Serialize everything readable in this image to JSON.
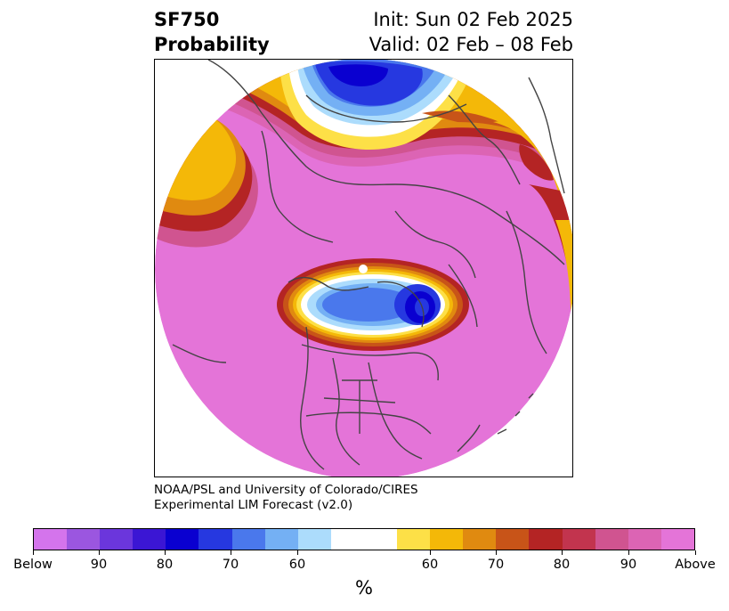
{
  "title": {
    "variable": "SF750",
    "kind": "Probability",
    "init": "Init: Sun 02 Feb 2025",
    "valid": "Valid: 02 Feb – 08 Feb"
  },
  "credit": {
    "line1": "NOAA/PSL and University of Colorado/CIRES",
    "line2": "Experimental LIM Forecast (v2.0)"
  },
  "colorbar": {
    "unit_label": "%",
    "tick_labels": [
      "Below",
      "90",
      "80",
      "70",
      "60",
      "60",
      "70",
      "80",
      "90",
      "Above"
    ],
    "segments": [
      {
        "category": "Below",
        "color": "#d474ec"
      },
      {
        "category": "below 90-100",
        "color": "#9b56e0"
      },
      {
        "category": "below 85-90",
        "color": "#6b36dc"
      },
      {
        "category": "below 80-85",
        "color": "#3b16d4"
      },
      {
        "category": "below 75-80",
        "color": "#0a00d0"
      },
      {
        "category": "below 70-75",
        "color": "#2638e0"
      },
      {
        "category": "below 65-70",
        "color": "#4a78ec"
      },
      {
        "category": "below 60-65",
        "color": "#74b0f4"
      },
      {
        "category": "below 55-60",
        "color": "#acdcfc"
      },
      {
        "category": "neutral",
        "color": "#ffffff"
      },
      {
        "category": "above 55-60",
        "color": "#fde047"
      },
      {
        "category": "above 60-65",
        "color": "#f4b808"
      },
      {
        "category": "above 65-70",
        "color": "#e08a10"
      },
      {
        "category": "above 70-75",
        "color": "#c85418"
      },
      {
        "category": "above 75-80",
        "color": "#b42424"
      },
      {
        "category": "above 80-85",
        "color": "#c2344e"
      },
      {
        "category": "above 85-90",
        "color": "#d05490"
      },
      {
        "category": "above 90-100",
        "color": "#dc64b4"
      },
      {
        "category": "Above",
        "color": "#e474d8"
      }
    ]
  },
  "map": {
    "projection": "polar stereographic, north pole centered",
    "background_color": "#e474d8",
    "coastline_color": "#444444"
  }
}
